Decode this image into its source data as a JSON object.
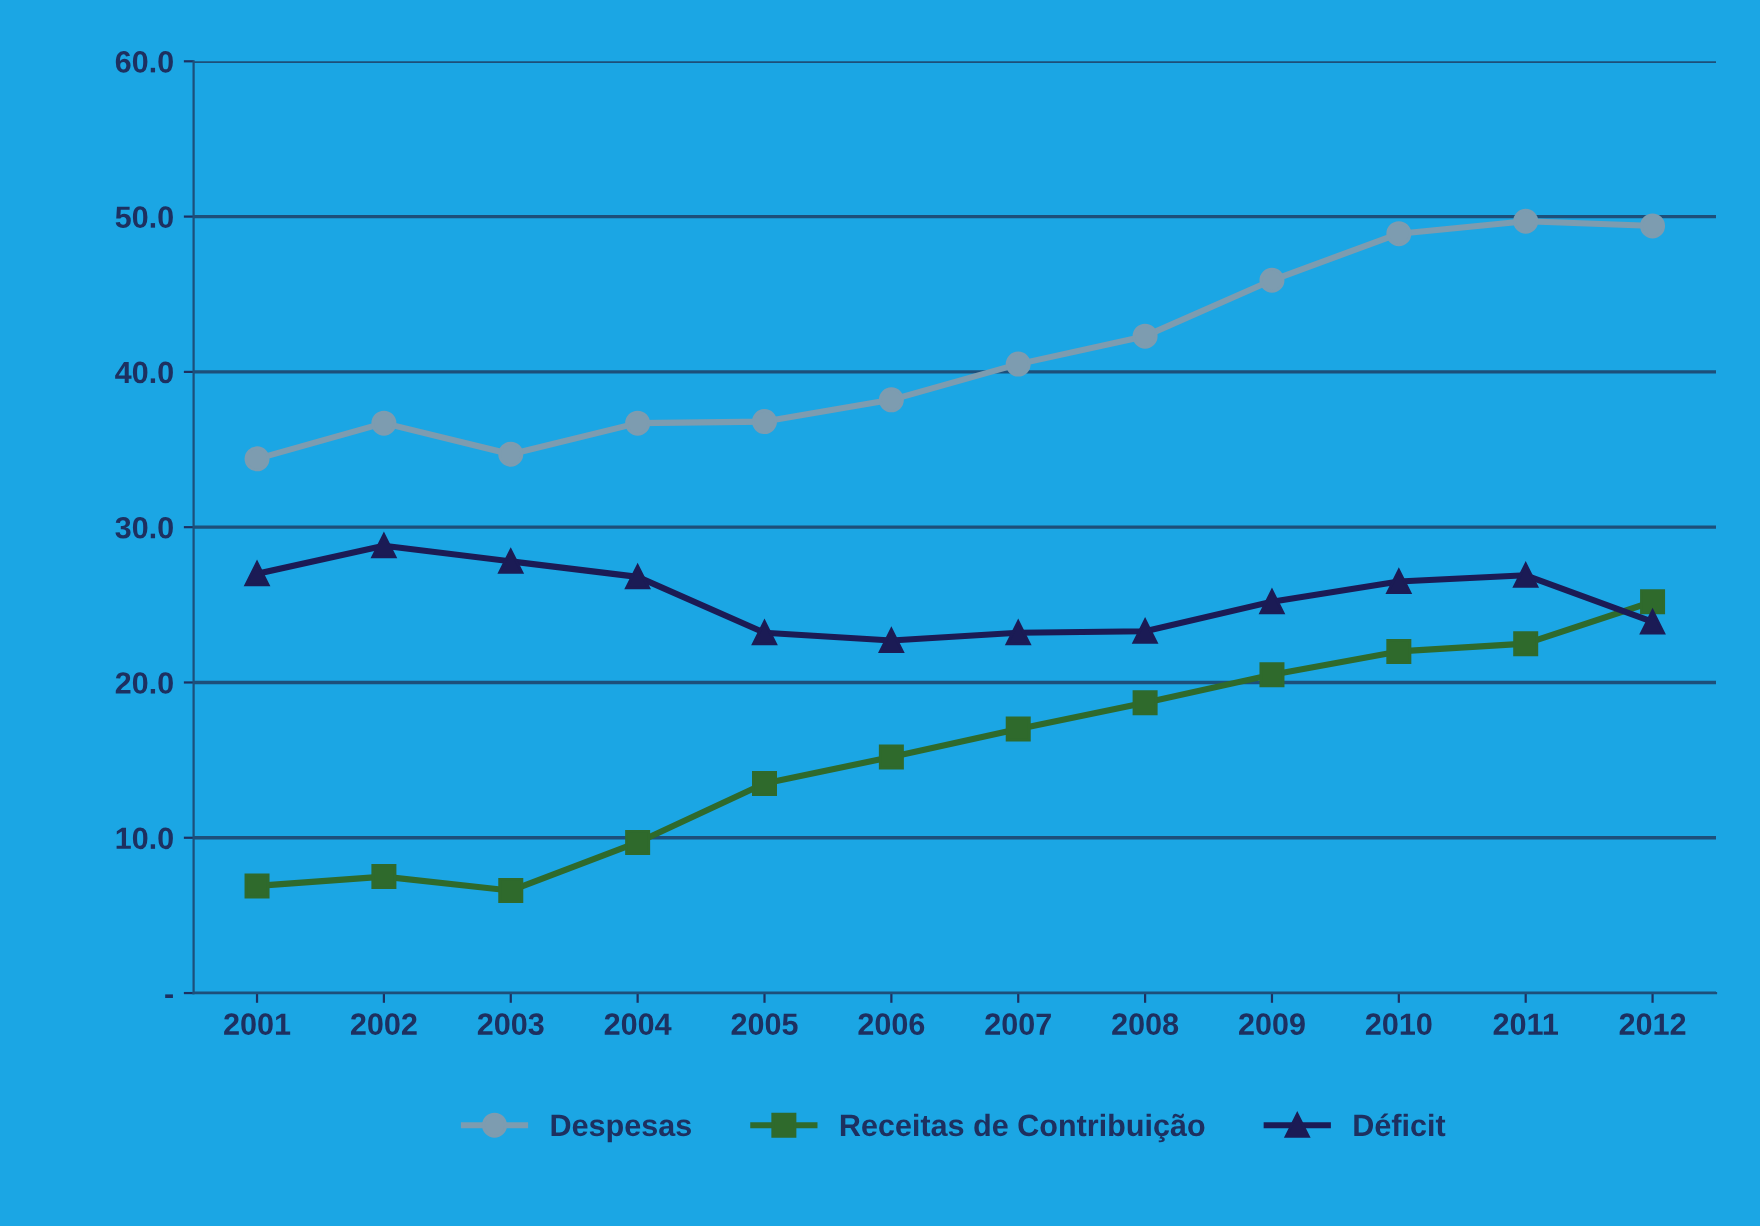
{
  "chart_data": {
    "type": "line",
    "categories": [
      "2001",
      "2002",
      "2003",
      "2004",
      "2005",
      "2006",
      "2007",
      "2008",
      "2009",
      "2010",
      "2011",
      "2012"
    ],
    "series": [
      {
        "name": "Despesas",
        "color": "#7d9cb0",
        "marker": "circle",
        "values": [
          34.4,
          36.7,
          34.7,
          36.7,
          36.8,
          38.2,
          40.5,
          42.3,
          45.9,
          48.9,
          49.7,
          49.4
        ]
      },
      {
        "name": "Receitas de Contribuição",
        "color": "#2f6a2c",
        "marker": "square",
        "values": [
          6.9,
          7.5,
          6.6,
          9.7,
          13.5,
          15.2,
          17.0,
          18.7,
          20.5,
          22.0,
          22.5,
          25.2
        ]
      },
      {
        "name": "Déficit",
        "color": "#1b1b55",
        "marker": "triangle",
        "values": [
          27.0,
          28.8,
          27.8,
          26.8,
          23.2,
          22.7,
          23.2,
          23.3,
          25.2,
          26.5,
          26.9,
          23.9
        ]
      }
    ],
    "ylim": [
      0,
      60
    ],
    "yticks": [
      {
        "value": 0,
        "label": "-"
      },
      {
        "value": 10,
        "label": "10.0"
      },
      {
        "value": 20,
        "label": "20.0"
      },
      {
        "value": 30,
        "label": "30.0"
      },
      {
        "value": 40,
        "label": "40.0"
      },
      {
        "value": 50,
        "label": "50.0"
      },
      {
        "value": 60,
        "label": "60.0"
      }
    ],
    "grid": "y",
    "legend": "bottom"
  }
}
